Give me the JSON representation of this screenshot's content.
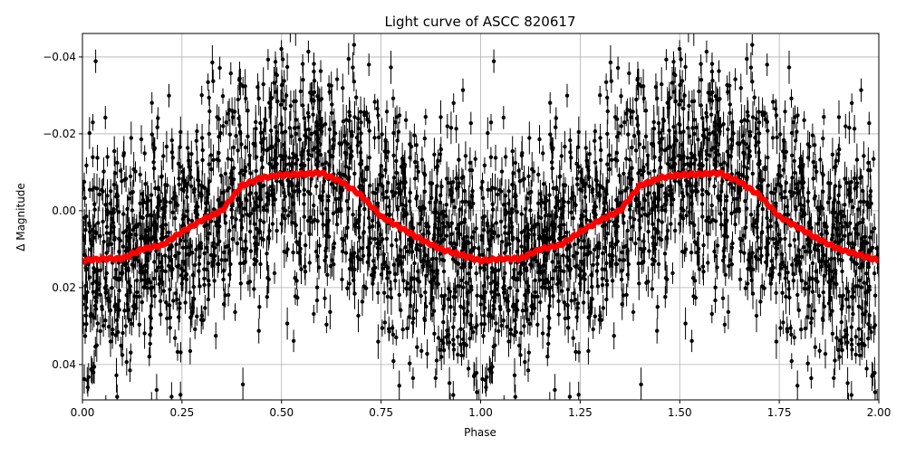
{
  "chart_data": {
    "type": "scatter",
    "title": "Light curve of ASCC 820617",
    "xlabel": "Phase",
    "ylabel": "Δ Magnitude",
    "xlim": [
      0,
      2.0
    ],
    "ylim": [
      0.0492,
      -0.0461
    ],
    "y_inverted": true,
    "grid": true,
    "x_ticks": [
      "0.00",
      "0.25",
      "0.50",
      "0.75",
      "1.00",
      "1.25",
      "1.50",
      "1.75",
      "2.00"
    ],
    "x_tick_values": [
      0,
      0.25,
      0.5,
      0.75,
      1.0,
      1.25,
      1.5,
      1.75,
      2.0
    ],
    "y_ticks": [
      "−0.04",
      "−0.02",
      "0.00",
      "0.02",
      "0.04"
    ],
    "y_tick_values": [
      -0.04,
      -0.02,
      0.0,
      0.02,
      0.04
    ],
    "series": [
      {
        "style": "black points with error bars",
        "color": "#000000"
      },
      {
        "style": "binned curve",
        "color": "#ff0000",
        "x": [
          0,
          0.05,
          0.1,
          0.15,
          0.2,
          0.25,
          0.3,
          0.35,
          0.4,
          0.45,
          0.5,
          0.55,
          0.6,
          0.65,
          0.7,
          0.75,
          0.8,
          0.85,
          0.9,
          0.95,
          1.0,
          1.05,
          1.1,
          1.15,
          1.2,
          1.25,
          1.3,
          1.35,
          1.4,
          1.45,
          1.5,
          1.55,
          1.6,
          1.65,
          1.7,
          1.75,
          1.8,
          1.85,
          1.9,
          1.95,
          2.0
        ],
        "values": [
          0.013,
          0.0125,
          0.0125,
          0.01,
          0.009,
          0.0055,
          0.0025,
          0.0,
          -0.0065,
          -0.0085,
          -0.0093,
          -0.0095,
          -0.0098,
          -0.0075,
          -0.004,
          0.0015,
          0.0045,
          0.0075,
          0.01,
          0.0115,
          0.013,
          0.0125,
          0.0125,
          0.01,
          0.009,
          0.0055,
          0.0025,
          0.0,
          -0.0065,
          -0.0085,
          -0.0093,
          -0.0095,
          -0.0098,
          -0.0075,
          -0.004,
          0.0015,
          0.0045,
          0.0075,
          0.01,
          0.0115,
          0.013
        ]
      }
    ]
  }
}
